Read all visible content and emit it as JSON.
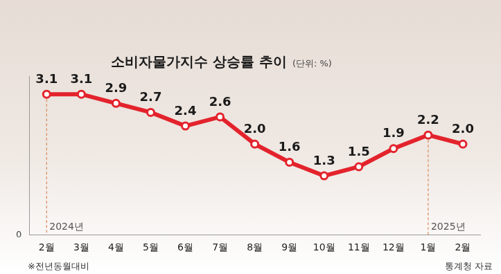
{
  "chart_data": {
    "type": "line",
    "title": "소비자물가지수 상승률 추이",
    "subtitle": "(단위: %)",
    "categories": [
      "2월",
      "3월",
      "4월",
      "5월",
      "6월",
      "7월",
      "8월",
      "9월",
      "10월",
      "11월",
      "12월",
      "1월",
      "2월"
    ],
    "values": [
      3.1,
      3.1,
      2.9,
      2.7,
      2.4,
      2.6,
      2.0,
      1.6,
      1.3,
      1.5,
      1.9,
      2.2,
      2.0
    ],
    "value_labels": [
      "3.1",
      "3.1",
      "2.9",
      "2.7",
      "2.4",
      "2.6",
      "2.0",
      "1.6",
      "1.3",
      "1.5",
      "1.9",
      "2.2",
      "2.0"
    ],
    "color": "#e3232c",
    "ylim": [
      0,
      3.5
    ],
    "yticks": [
      0
    ],
    "grid": false,
    "legend": false,
    "data_labels": true,
    "marker": "circle",
    "annotations": [
      {
        "text": "2024년",
        "at": 0
      },
      {
        "text": "2025년",
        "at": 11
      }
    ],
    "footnote": "※전년동월대비",
    "source": "통계청 자료"
  }
}
